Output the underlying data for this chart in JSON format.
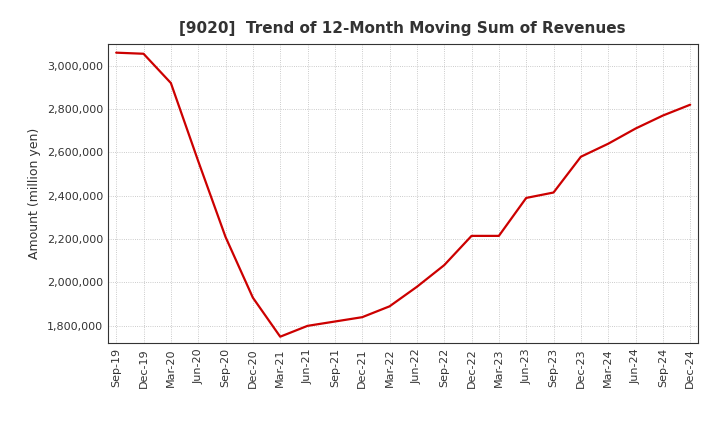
{
  "title": "[9020]  Trend of 12-Month Moving Sum of Revenues",
  "ylabel": "Amount (million yen)",
  "line_color": "#cc0000",
  "background_color": "#ffffff",
  "grid_color": "#bbbbbb",
  "x_labels": [
    "Sep-19",
    "Dec-19",
    "Mar-20",
    "Jun-20",
    "Sep-20",
    "Dec-20",
    "Mar-21",
    "Jun-21",
    "Sep-21",
    "Dec-21",
    "Mar-22",
    "Jun-22",
    "Sep-22",
    "Dec-22",
    "Mar-23",
    "Jun-23",
    "Sep-23",
    "Dec-23",
    "Mar-24",
    "Jun-24",
    "Sep-24",
    "Dec-24"
  ],
  "y_values": [
    3060000,
    3055000,
    2920000,
    2560000,
    2210000,
    1930000,
    1750000,
    1800000,
    1820000,
    1840000,
    1890000,
    1980000,
    2080000,
    2215000,
    2215000,
    2390000,
    2415000,
    2580000,
    2640000,
    2710000,
    2770000,
    2820000
  ],
  "ylim": [
    1720000,
    3100000
  ],
  "yticks": [
    1800000,
    2000000,
    2200000,
    2400000,
    2600000,
    2800000,
    3000000
  ],
  "title_fontsize": 11,
  "axis_fontsize": 9,
  "tick_fontsize": 8,
  "linewidth": 1.6
}
